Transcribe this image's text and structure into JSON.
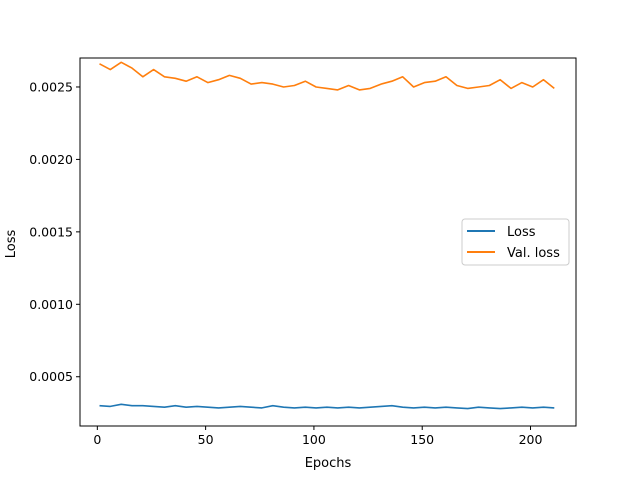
{
  "chart_data": {
    "type": "line",
    "title": "",
    "xlabel": "Epochs",
    "ylabel": "Loss",
    "xlim": [
      -8,
      221
    ],
    "ylim": [
      0.00016,
      0.0027
    ],
    "xticks": [
      0,
      50,
      100,
      150,
      200
    ],
    "xtick_labels": [
      "0",
      "50",
      "100",
      "150",
      "200"
    ],
    "yticks": [
      0.0005,
      0.001,
      0.0015,
      0.002,
      0.0025
    ],
    "ytick_labels": [
      "0.0005",
      "0.0010",
      "0.0015",
      "0.0020",
      "0.0025"
    ],
    "grid": false,
    "legend_position": "center-right",
    "series": [
      {
        "name": "Loss",
        "color": "#1f77b4",
        "x": [
          1,
          6,
          11,
          16,
          21,
          26,
          31,
          36,
          41,
          46,
          51,
          56,
          61,
          66,
          71,
          76,
          81,
          86,
          91,
          96,
          101,
          106,
          111,
          116,
          121,
          126,
          131,
          136,
          141,
          146,
          151,
          156,
          161,
          166,
          171,
          176,
          181,
          186,
          191,
          196,
          201,
          206,
          211
        ],
        "values": [
          0.0003,
          0.000295,
          0.00031,
          0.0003,
          0.0003,
          0.000295,
          0.00029,
          0.0003,
          0.00029,
          0.000295,
          0.00029,
          0.000285,
          0.00029,
          0.000295,
          0.00029,
          0.000285,
          0.0003,
          0.00029,
          0.000285,
          0.00029,
          0.000285,
          0.00029,
          0.000285,
          0.00029,
          0.000285,
          0.00029,
          0.000295,
          0.0003,
          0.00029,
          0.000285,
          0.00029,
          0.000285,
          0.00029,
          0.000285,
          0.00028,
          0.00029,
          0.000285,
          0.00028,
          0.000285,
          0.00029,
          0.000285,
          0.00029,
          0.000285
        ]
      },
      {
        "name": "Val. loss",
        "color": "#ff7f0e",
        "x": [
          1,
          6,
          11,
          16,
          21,
          26,
          31,
          36,
          41,
          46,
          51,
          56,
          61,
          66,
          71,
          76,
          81,
          86,
          91,
          96,
          101,
          106,
          111,
          116,
          121,
          126,
          131,
          136,
          141,
          146,
          151,
          156,
          161,
          166,
          171,
          176,
          181,
          186,
          191,
          196,
          201,
          206,
          211
        ],
        "values": [
          0.00266,
          0.00262,
          0.00267,
          0.00263,
          0.00257,
          0.00262,
          0.00257,
          0.00256,
          0.00254,
          0.00257,
          0.00253,
          0.00255,
          0.00258,
          0.00256,
          0.00252,
          0.00253,
          0.00252,
          0.0025,
          0.00251,
          0.00254,
          0.0025,
          0.00249,
          0.00248,
          0.00251,
          0.00248,
          0.00249,
          0.00252,
          0.00254,
          0.00257,
          0.0025,
          0.00253,
          0.00254,
          0.00257,
          0.00251,
          0.00249,
          0.0025,
          0.00251,
          0.00255,
          0.00249,
          0.00253,
          0.0025,
          0.00255,
          0.00249
        ]
      }
    ]
  }
}
